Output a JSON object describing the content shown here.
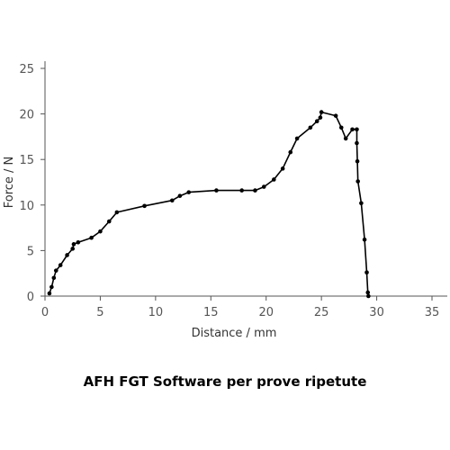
{
  "caption": "AFH FGT Software per prove ripetute",
  "chart_data": {
    "type": "line",
    "title": "",
    "xlabel": "Distance / mm",
    "ylabel": "Force / N",
    "xlim": [
      0,
      35
    ],
    "ylim": [
      0,
      25
    ],
    "xticks": [
      0,
      5,
      10,
      15,
      20,
      25,
      30,
      35
    ],
    "yticks": [
      0,
      5,
      10,
      15,
      20,
      25
    ],
    "grid": false,
    "legend": "none",
    "series": [
      {
        "color": "#000000",
        "x": [
          0.4,
          0.6,
          0.8,
          1.0,
          1.4,
          2.0,
          2.5,
          2.6,
          3.0,
          4.2,
          5.0,
          5.8,
          6.5,
          9.0,
          11.5,
          12.2,
          13.0,
          15.5,
          17.8,
          19.0,
          19.8,
          20.7,
          21.5,
          22.2,
          22.8,
          24.0,
          24.6,
          24.9,
          25.0,
          26.3,
          26.8,
          27.2,
          27.8,
          28.2,
          28.2,
          28.25,
          28.3,
          28.6,
          28.9,
          29.1,
          29.2,
          29.25
        ],
        "y": [
          0.3,
          1.0,
          2.0,
          2.8,
          3.4,
          4.5,
          5.2,
          5.7,
          5.9,
          6.4,
          7.1,
          8.2,
          9.2,
          9.9,
          10.5,
          11.0,
          11.4,
          11.6,
          11.6,
          11.6,
          12.0,
          12.8,
          14.0,
          15.8,
          17.3,
          18.5,
          19.2,
          19.6,
          20.2,
          19.8,
          18.5,
          17.3,
          18.3,
          18.3,
          16.8,
          14.8,
          12.6,
          10.2,
          6.2,
          2.6,
          0.4,
          0.0
        ]
      }
    ]
  }
}
